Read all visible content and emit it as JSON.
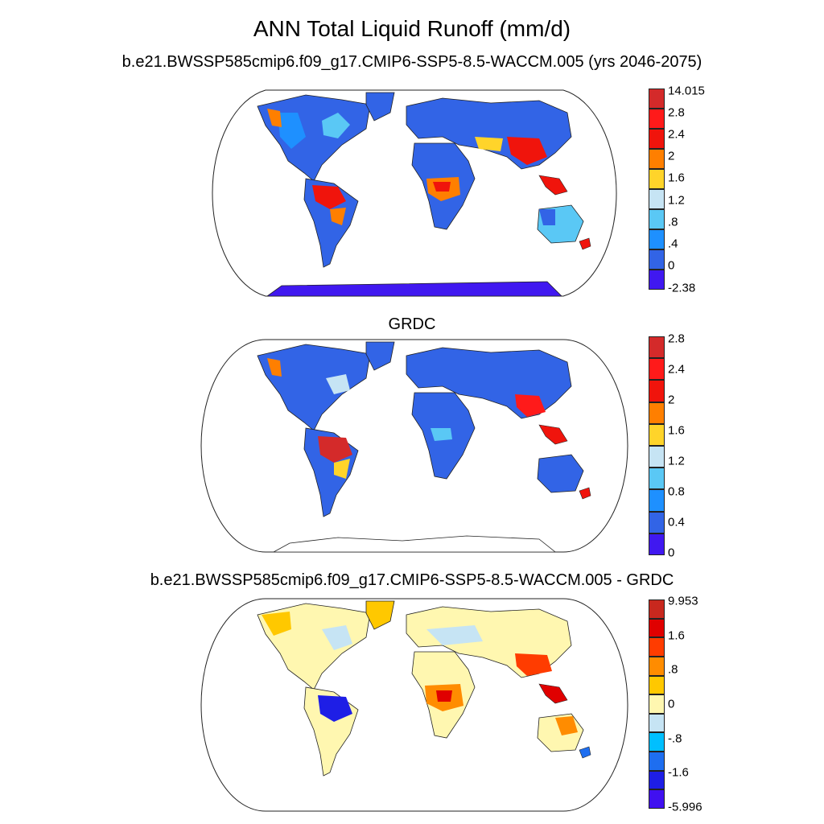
{
  "title": "ANN Total Liquid Runoff (mm/d)",
  "panels": [
    {
      "id": "model",
      "title": "b.e21.BWSSP585cmip6.f09_g17.CMIP6-SSP5-8.5-WACCM.005 (yrs 2046-2075)",
      "colorbar": {
        "colors": [
          "#d42a2a",
          "#ff1a1a",
          "#f0140c",
          "#ff7f00",
          "#ffd42a",
          "#c6e4f4",
          "#5ac8f5",
          "#1e90ff",
          "#3264e6",
          "#4018f0"
        ],
        "labels": [
          "14.015",
          "2.8",
          "2.4",
          "2",
          "1.6",
          "1.2",
          ".8",
          ".4",
          "0",
          "-2.38"
        ]
      }
    },
    {
      "id": "obs",
      "title": "GRDC",
      "colorbar": {
        "colors": [
          "#d42a2a",
          "#ff1a1a",
          "#f0140c",
          "#ff7f00",
          "#ffd42a",
          "#c6e4f4",
          "#5ac8f5",
          "#1e90ff",
          "#3264e6",
          "#4018f0"
        ],
        "labels": [
          "2.8",
          "2.4",
          "2",
          "1.6",
          "1.2",
          "0.8",
          "0.4",
          "0"
        ]
      }
    },
    {
      "id": "diff",
      "title": "b.e21.BWSSP585cmip6.f09_g17.CMIP6-SSP5-8.5-WACCM.005 - GRDC",
      "colorbar": {
        "colors": [
          "#c8281e",
          "#e00000",
          "#ff3c00",
          "#ff8c00",
          "#ffc800",
          "#fff7b0",
          "#c6e4f4",
          "#00bfff",
          "#1e6ef0",
          "#1e1ee6",
          "#4010f0"
        ],
        "labels": [
          "9.953",
          "1.6",
          ".8",
          "0",
          "-.8",
          "-1.6",
          "-5.996"
        ]
      }
    }
  ]
}
